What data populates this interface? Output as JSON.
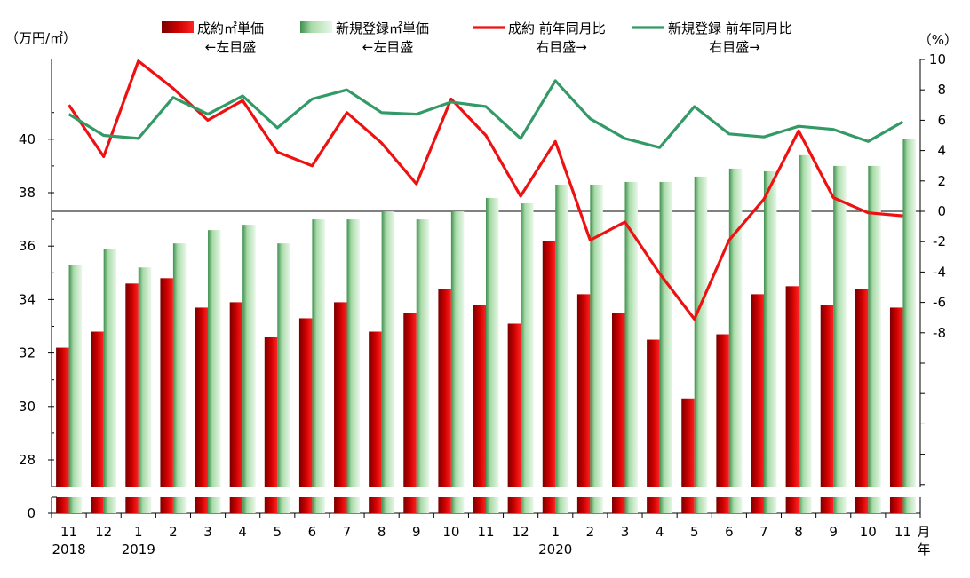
{
  "colors": {
    "contract_bar": "#cc0000",
    "new_listing_bar": "#a8dba8",
    "contract_line": "#ee1111",
    "new_listing_line": "#339966",
    "axis": "#000000"
  },
  "left_axis": {
    "unit_label": "（万円/㎡）",
    "ticks": [
      "0",
      "28",
      "30",
      "32",
      "34",
      "36",
      "38",
      "40"
    ]
  },
  "right_axis": {
    "unit_label": "（%）",
    "ticks": [
      "-8",
      "-6",
      "-4",
      "-2",
      "0",
      "2",
      "4",
      "6",
      "8",
      "10"
    ]
  },
  "x_axis": {
    "month_suffix": "月",
    "year_suffix": "年",
    "year_labels": [
      {
        "text": "2018",
        "index": 0
      },
      {
        "text": "2019",
        "index": 2
      },
      {
        "text": "2020",
        "index": 14
      }
    ]
  },
  "legend": [
    {
      "name": "成約㎡単価",
      "note": "←左目盛",
      "kind": "bar",
      "color_key": "contract_bar"
    },
    {
      "name": "新規登録㎡単価",
      "note": "←左目盛",
      "kind": "bar",
      "color_key": "new_listing_bar"
    },
    {
      "name": "成約 前年同月比",
      "note": "右目盛→",
      "kind": "line",
      "color_key": "contract_line"
    },
    {
      "name": "新規登録 前年同月比",
      "note": "右目盛→",
      "kind": "line",
      "color_key": "new_listing_line"
    }
  ],
  "chart_data": {
    "type": "bar",
    "categories": [
      "11",
      "12",
      "1",
      "2",
      "3",
      "4",
      "5",
      "6",
      "7",
      "8",
      "9",
      "10",
      "11",
      "12",
      "1",
      "2",
      "3",
      "4",
      "5",
      "6",
      "7",
      "8",
      "9",
      "10",
      "11"
    ],
    "left_axis_range": [
      28,
      41.5
    ],
    "left_axis_break": "0 to 28",
    "right_axis_range": [
      -8,
      10
    ],
    "bars": [
      {
        "name": "成約㎡単価",
        "axis": "left",
        "values": [
          32.2,
          32.8,
          34.6,
          34.8,
          33.7,
          33.9,
          32.6,
          33.3,
          33.9,
          32.8,
          33.5,
          34.4,
          33.8,
          33.1,
          36.2,
          34.2,
          33.5,
          32.5,
          30.3,
          32.7,
          34.2,
          34.5,
          33.8,
          34.4,
          33.7
        ]
      },
      {
        "name": "新規登録㎡単価",
        "axis": "left",
        "values": [
          35.3,
          35.9,
          35.2,
          36.1,
          36.6,
          36.8,
          36.1,
          37.0,
          37.0,
          37.3,
          37.0,
          37.3,
          37.8,
          37.6,
          38.3,
          38.3,
          38.4,
          38.4,
          38.6,
          38.9,
          38.8,
          39.4,
          39.0,
          39.0,
          40.0
        ]
      }
    ],
    "lines": [
      {
        "name": "成約 前年同月比",
        "axis": "right",
        "values": [
          7.0,
          3.6,
          9.9,
          8.1,
          6.0,
          7.3,
          3.9,
          3.0,
          6.5,
          4.5,
          1.8,
          7.4,
          5.0,
          1.0,
          4.6,
          -1.9,
          -0.7,
          -4.1,
          -7.1,
          -1.9,
          0.8,
          5.3,
          0.9,
          -0.1,
          -0.3
        ]
      },
      {
        "name": "新規登録 前年同月比",
        "axis": "right",
        "values": [
          6.4,
          5.0,
          4.8,
          7.5,
          6.4,
          7.6,
          5.5,
          7.4,
          8.0,
          6.5,
          6.4,
          7.2,
          6.9,
          4.8,
          8.6,
          6.1,
          4.8,
          4.2,
          6.9,
          5.1,
          4.9,
          5.6,
          5.4,
          4.6,
          5.9
        ]
      }
    ]
  }
}
